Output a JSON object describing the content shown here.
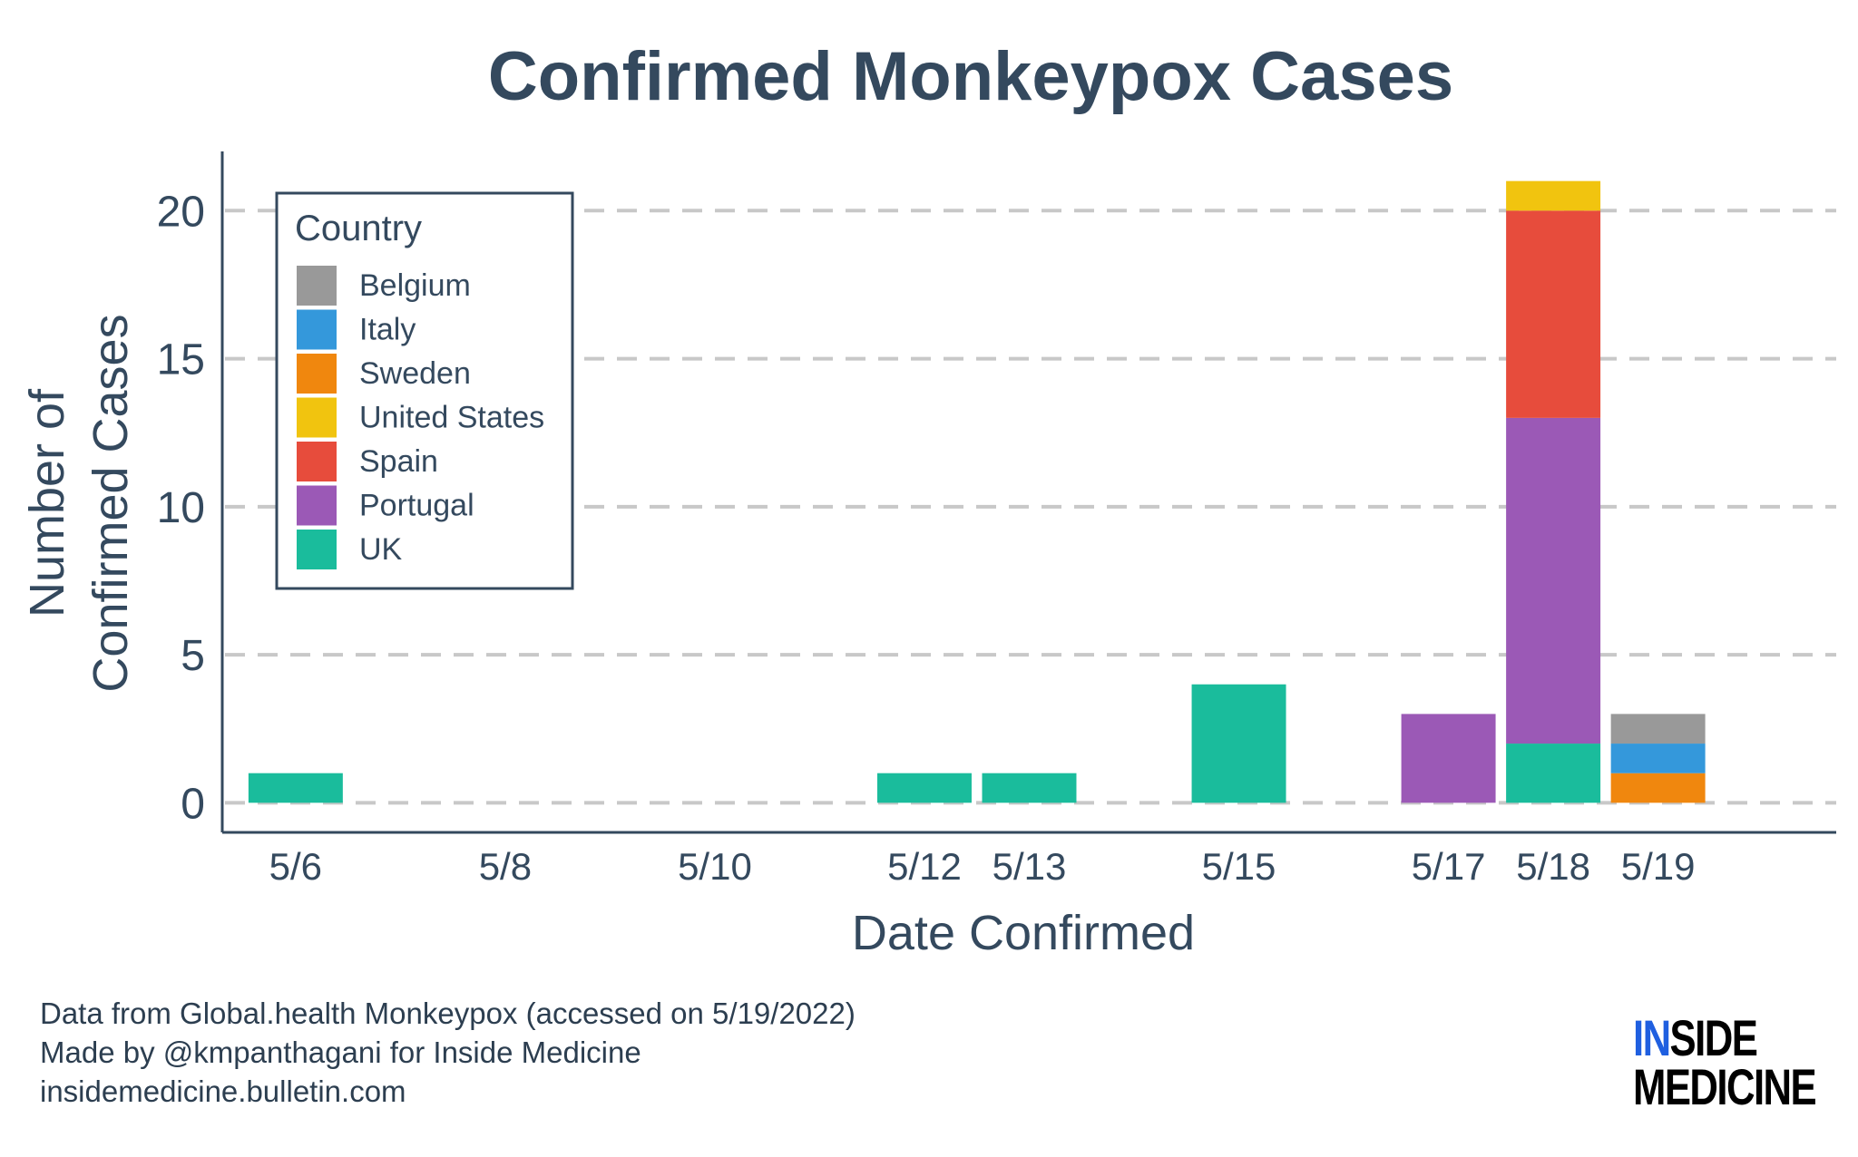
{
  "chart_data": {
    "type": "bar",
    "stacked": true,
    "title": "Confirmed Monkeypox Cases",
    "xlabel": "Date Confirmed",
    "ylabel_lines": [
      "Number of",
      "Confirmed Cases"
    ],
    "x_ticks": [
      "5/6",
      "5/8",
      "5/10",
      "5/12",
      "5/13",
      "5/15",
      "5/17",
      "5/18",
      "5/19"
    ],
    "x_tick_days": [
      6,
      8,
      10,
      12,
      13,
      15,
      17,
      18,
      19
    ],
    "y_ticks": [
      0,
      5,
      10,
      15,
      20
    ],
    "ylim": [
      -1,
      22
    ],
    "xlim_days": [
      5.3,
      20.7
    ],
    "grid": "horizontal dashed",
    "legend": {
      "title": "Country",
      "position": "top-left"
    },
    "series": [
      {
        "name": "Belgium",
        "color": "#999999"
      },
      {
        "name": "Italy",
        "color": "#3498db"
      },
      {
        "name": "Sweden",
        "color": "#f0870e"
      },
      {
        "name": "United States",
        "color": "#f1c40f"
      },
      {
        "name": "Spain",
        "color": "#e74c3c"
      },
      {
        "name": "Portugal",
        "color": "#9b59b6"
      },
      {
        "name": "UK",
        "color": "#1abc9c"
      }
    ],
    "bars": [
      {
        "date": "5/6",
        "segments": [
          {
            "country": "UK",
            "value": 1
          }
        ]
      },
      {
        "date": "5/12",
        "segments": [
          {
            "country": "UK",
            "value": 1
          }
        ]
      },
      {
        "date": "5/13",
        "segments": [
          {
            "country": "UK",
            "value": 1
          }
        ]
      },
      {
        "date": "5/15",
        "segments": [
          {
            "country": "UK",
            "value": 4
          }
        ]
      },
      {
        "date": "5/17",
        "segments": [
          {
            "country": "Portugal",
            "value": 3
          }
        ]
      },
      {
        "date": "5/18",
        "segments": [
          {
            "country": "UK",
            "value": 2
          },
          {
            "country": "Portugal",
            "value": 11
          },
          {
            "country": "Spain",
            "value": 7
          },
          {
            "country": "United States",
            "value": 1
          }
        ]
      },
      {
        "date": "5/19",
        "segments": [
          {
            "country": "Sweden",
            "value": 1
          },
          {
            "country": "Italy",
            "value": 1
          },
          {
            "country": "Belgium",
            "value": 1
          }
        ]
      }
    ]
  },
  "footer": {
    "line1": "Data from Global.health Monkeypox (accessed on 5/19/2022)",
    "line2": "Made by @kmpanthagani for Inside Medicine",
    "line3": "insidemedicine.bulletin.com"
  },
  "logo": {
    "line1_highlight": "IN",
    "line1_rest": "SIDE",
    "line2": "MEDICINE"
  }
}
